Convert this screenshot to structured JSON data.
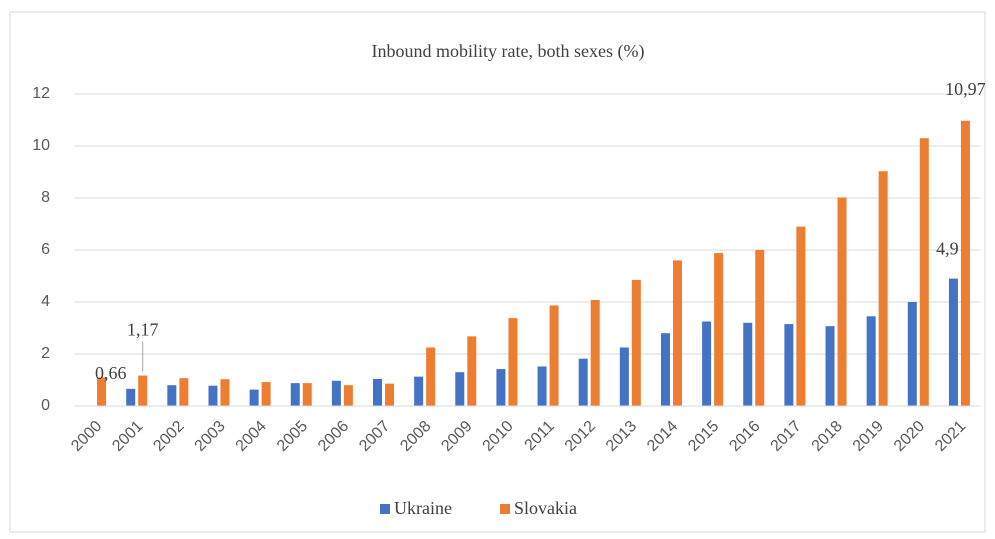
{
  "chart_data": {
    "type": "bar",
    "title": "Inbound mobility rate, both sexes (%)",
    "categories": [
      "2000",
      "2001",
      "2002",
      "2003",
      "2004",
      "2005",
      "2006",
      "2007",
      "2008",
      "2009",
      "2010",
      "2011",
      "2012",
      "2013",
      "2014",
      "2015",
      "2016",
      "2017",
      "2018",
      "2019",
      "2020",
      "2021"
    ],
    "series": [
      {
        "name": "Ukraine",
        "color": "#4472c4",
        "values": [
          null,
          0.66,
          0.8,
          0.78,
          0.63,
          0.88,
          0.97,
          1.04,
          1.13,
          1.3,
          1.42,
          1.52,
          1.82,
          2.25,
          2.8,
          3.25,
          3.2,
          3.15,
          3.07,
          3.45,
          4.0,
          4.9
        ],
        "value_labels": [
          null,
          "0,66",
          null,
          null,
          null,
          null,
          null,
          null,
          null,
          null,
          null,
          null,
          null,
          null,
          null,
          null,
          null,
          null,
          null,
          null,
          null,
          "4,9"
        ]
      },
      {
        "name": "Slovakia",
        "color": "#ed7d31",
        "values": [
          1.1,
          1.17,
          1.07,
          1.03,
          0.92,
          0.88,
          0.8,
          0.86,
          2.25,
          2.68,
          3.38,
          3.87,
          4.08,
          4.85,
          5.6,
          5.88,
          6.0,
          6.9,
          8.02,
          9.03,
          10.3,
          10.97
        ],
        "value_labels": [
          null,
          "1,17",
          null,
          null,
          null,
          null,
          null,
          null,
          null,
          null,
          null,
          null,
          null,
          null,
          null,
          null,
          null,
          null,
          null,
          null,
          null,
          "10,97"
        ]
      }
    ],
    "ylim": [
      0,
      12
    ],
    "yticks": [
      0,
      2,
      4,
      6,
      8,
      10,
      12
    ],
    "grid": true,
    "legend": "bottom"
  }
}
